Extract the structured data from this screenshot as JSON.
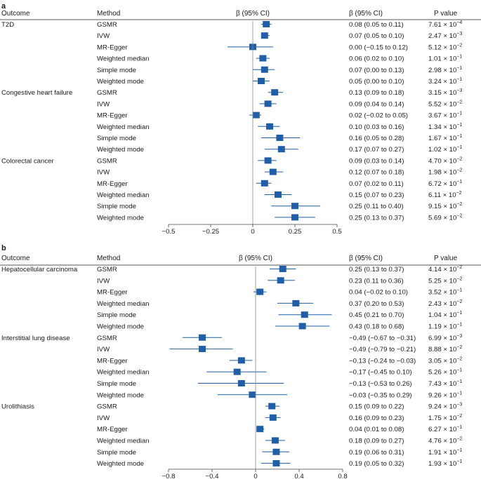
{
  "colors": {
    "marker": "#1f5ea8",
    "ci_line": "#1f5ea8",
    "axis": "#444444",
    "zero_line": "#888888",
    "text": "#1a1a1a"
  },
  "panels": [
    {
      "letter": "a",
      "header": {
        "outcome": "Outcome",
        "method": "Method",
        "beta_axis": "β (95% CI)",
        "beta_col": "β (95% CI)",
        "p_col": "P value"
      },
      "xticks": [
        "−0.5",
        "−0.25",
        "0",
        "0.25",
        "0.5"
      ]
    },
    {
      "letter": "b",
      "header": {
        "outcome": "Outcome",
        "method": "Method",
        "beta_axis": "β (95% CI)",
        "beta_col": "β (95% CI)",
        "p_col": "P value"
      },
      "xticks": [
        "−0.8",
        "−0.4",
        "0",
        "0.4",
        "0.8"
      ]
    }
  ],
  "chart_data": [
    {
      "type": "forest",
      "panel": "a",
      "xlim": [
        -0.5,
        0.5
      ],
      "xticks": [
        -0.5,
        -0.25,
        0,
        0.25,
        0.5
      ],
      "groups": [
        {
          "outcome": "T2D",
          "rows": [
            {
              "method": "GSMR",
              "beta": 0.08,
              "lo": 0.05,
              "hi": 0.11,
              "ci_text": "0.08 (0.05 to 0.11)",
              "p_mant": "7.61",
              "p_exp": "−4"
            },
            {
              "method": "IVW",
              "beta": 0.07,
              "lo": 0.05,
              "hi": 0.1,
              "ci_text": "0.07 (0.05 to 0.10)",
              "p_mant": "2.47",
              "p_exp": "−3"
            },
            {
              "method": "MR-Egger",
              "beta": 0.0,
              "lo": -0.15,
              "hi": 0.12,
              "ci_text": "0.00 (−0.15 to 0.12)",
              "p_mant": "5.12",
              "p_exp": "−2"
            },
            {
              "method": "Weighted median",
              "beta": 0.06,
              "lo": 0.02,
              "hi": 0.1,
              "ci_text": "0.06 (0.02 to 0.10)",
              "p_mant": "1.01",
              "p_exp": "−1"
            },
            {
              "method": "Simple mode",
              "beta": 0.07,
              "lo": 0.0,
              "hi": 0.13,
              "ci_text": "0.07 (0.00 to 0.13)",
              "p_mant": "2.98",
              "p_exp": "−1"
            },
            {
              "method": "Weighted mode",
              "beta": 0.05,
              "lo": 0.0,
              "hi": 0.1,
              "ci_text": "0.05 (0.00 to 0.10)",
              "p_mant": "3.24",
              "p_exp": "−1"
            }
          ]
        },
        {
          "outcome": "Congestive heart failure",
          "rows": [
            {
              "method": "GSMR",
              "beta": 0.13,
              "lo": 0.09,
              "hi": 0.18,
              "ci_text": "0.13 (0.09 to 0.18)",
              "p_mant": "3.15",
              "p_exp": "−3"
            },
            {
              "method": "IVW",
              "beta": 0.09,
              "lo": 0.04,
              "hi": 0.14,
              "ci_text": "0.09 (0.04 to 0.14)",
              "p_mant": "5.52",
              "p_exp": "−2"
            },
            {
              "method": "MR-Egger",
              "beta": 0.02,
              "lo": -0.02,
              "hi": 0.05,
              "ci_text": "0.02 (−0.02 to 0.05)",
              "p_mant": "3.67",
              "p_exp": "−1"
            },
            {
              "method": "Weighted median",
              "beta": 0.1,
              "lo": 0.03,
              "hi": 0.16,
              "ci_text": "0.10 (0.03 to 0.16)",
              "p_mant": "1.34",
              "p_exp": "−1"
            },
            {
              "method": "Simple mode",
              "beta": 0.16,
              "lo": 0.05,
              "hi": 0.28,
              "ci_text": "0.16 (0.05 to 0.28)",
              "p_mant": "1.67",
              "p_exp": "−1"
            },
            {
              "method": "Weighted mode",
              "beta": 0.17,
              "lo": 0.07,
              "hi": 0.27,
              "ci_text": "0.17 (0.07 to 0.27)",
              "p_mant": "1.02",
              "p_exp": "−1"
            }
          ]
        },
        {
          "outcome": "Colorectal cancer",
          "rows": [
            {
              "method": "GSMR",
              "beta": 0.09,
              "lo": 0.03,
              "hi": 0.14,
              "ci_text": "0.09 (0.03 to 0.14)",
              "p_mant": "4.70",
              "p_exp": "−2"
            },
            {
              "method": "IVW",
              "beta": 0.12,
              "lo": 0.07,
              "hi": 0.18,
              "ci_text": "0.12 (0.07 to 0.18)",
              "p_mant": "1.98",
              "p_exp": "−2"
            },
            {
              "method": "MR-Egger",
              "beta": 0.07,
              "lo": 0.02,
              "hi": 0.11,
              "ci_text": "0.07 (0.02 to 0.11)",
              "p_mant": "6.72",
              "p_exp": "−1"
            },
            {
              "method": "Weighted median",
              "beta": 0.15,
              "lo": 0.07,
              "hi": 0.23,
              "ci_text": "0.15 (0.07 to 0.23)",
              "p_mant": "6.11",
              "p_exp": "−2"
            },
            {
              "method": "Simple mode",
              "beta": 0.25,
              "lo": 0.11,
              "hi": 0.4,
              "ci_text": "0.25 (0.11 to 0.40)",
              "p_mant": "9.15",
              "p_exp": "−2"
            },
            {
              "method": "Weighted mode",
              "beta": 0.25,
              "lo": 0.13,
              "hi": 0.37,
              "ci_text": "0.25 (0.13 to 0.37)",
              "p_mant": "5.69",
              "p_exp": "−2"
            }
          ]
        }
      ]
    },
    {
      "type": "forest",
      "panel": "b",
      "xlim": [
        -0.8,
        0.8
      ],
      "xticks": [
        -0.8,
        -0.4,
        0,
        0.4,
        0.8
      ],
      "groups": [
        {
          "outcome": "Hepatocellular carcinoma",
          "rows": [
            {
              "method": "GSMR",
              "beta": 0.25,
              "lo": 0.13,
              "hi": 0.37,
              "ci_text": "0.25 (0.13 to 0.37)",
              "p_mant": "4.14",
              "p_exp": "−2"
            },
            {
              "method": "IVW",
              "beta": 0.23,
              "lo": 0.11,
              "hi": 0.36,
              "ci_text": "0.23 (0.11 to 0.36)",
              "p_mant": "5.25",
              "p_exp": "−2"
            },
            {
              "method": "MR-Egger",
              "beta": 0.04,
              "lo": -0.02,
              "hi": 0.1,
              "ci_text": "0.04 (−0.02 to 0.10)",
              "p_mant": "3.52",
              "p_exp": "−1"
            },
            {
              "method": "Weighted median",
              "beta": 0.37,
              "lo": 0.2,
              "hi": 0.53,
              "ci_text": "0.37 (0.20 to 0.53)",
              "p_mant": "2.43",
              "p_exp": "−2"
            },
            {
              "method": "Simple mode",
              "beta": 0.45,
              "lo": 0.21,
              "hi": 0.7,
              "ci_text": "0.45 (0.21 to 0.70)",
              "p_mant": "1.04",
              "p_exp": "−1"
            },
            {
              "method": "Weighted mode",
              "beta": 0.43,
              "lo": 0.18,
              "hi": 0.68,
              "ci_text": "0.43 (0.18 to 0.68)",
              "p_mant": "1.19",
              "p_exp": "−1"
            }
          ]
        },
        {
          "outcome": "Interstitial lung disease",
          "rows": [
            {
              "method": "GSMR",
              "beta": -0.49,
              "lo": -0.67,
              "hi": -0.31,
              "ci_text": "−0.49 (−0.67 to −0.31)",
              "p_mant": "6.99",
              "p_exp": "−3"
            },
            {
              "method": "IVW",
              "beta": -0.49,
              "lo": -0.79,
              "hi": -0.21,
              "ci_text": "−0.49 (−0.79 to −0.21)",
              "p_mant": "8.88",
              "p_exp": "−2"
            },
            {
              "method": "MR-Egger",
              "beta": -0.13,
              "lo": -0.24,
              "hi": -0.03,
              "ci_text": "−0.13 (−0.24 to −0.03)",
              "p_mant": "3.05",
              "p_exp": "−2"
            },
            {
              "method": "Weighted median",
              "beta": -0.17,
              "lo": -0.45,
              "hi": 0.1,
              "ci_text": "−0.17 (−0.45 to 0.10)",
              "p_mant": "5.26",
              "p_exp": "−1"
            },
            {
              "method": "Simple mode",
              "beta": -0.13,
              "lo": -0.53,
              "hi": 0.26,
              "ci_text": "−0.13 (−0.53 to 0.26)",
              "p_mant": "7.43",
              "p_exp": "−1"
            },
            {
              "method": "Weighted mode",
              "beta": -0.03,
              "lo": -0.35,
              "hi": 0.29,
              "ci_text": "−0.03 (−0.35 to 0.29)",
              "p_mant": "9.26",
              "p_exp": "−1"
            }
          ]
        },
        {
          "outcome": "Urolithiasis",
          "rows": [
            {
              "method": "GSMR",
              "beta": 0.15,
              "lo": 0.09,
              "hi": 0.22,
              "ci_text": "0.15 (0.09 to 0.22)",
              "p_mant": "9.24",
              "p_exp": "−3"
            },
            {
              "method": "IVW",
              "beta": 0.16,
              "lo": 0.09,
              "hi": 0.23,
              "ci_text": "0.16 (0.09 to 0.23)",
              "p_mant": "1.75",
              "p_exp": "−2"
            },
            {
              "method": "MR-Egger",
              "beta": 0.04,
              "lo": 0.01,
              "hi": 0.08,
              "ci_text": "0.04 (0.01 to 0.08)",
              "p_mant": "6.27",
              "p_exp": "−1"
            },
            {
              "method": "Weighted median",
              "beta": 0.18,
              "lo": 0.09,
              "hi": 0.27,
              "ci_text": "0.18 (0.09 to 0.27)",
              "p_mant": "4.76",
              "p_exp": "−2"
            },
            {
              "method": "Simple mode",
              "beta": 0.19,
              "lo": 0.06,
              "hi": 0.31,
              "ci_text": "0.19 (0.06 to 0.31)",
              "p_mant": "1.91",
              "p_exp": "−1"
            },
            {
              "method": "Weighted mode",
              "beta": 0.19,
              "lo": 0.05,
              "hi": 0.32,
              "ci_text": "0.19 (0.05 to 0.32)",
              "p_mant": "1.93",
              "p_exp": "−1"
            }
          ]
        }
      ]
    }
  ]
}
